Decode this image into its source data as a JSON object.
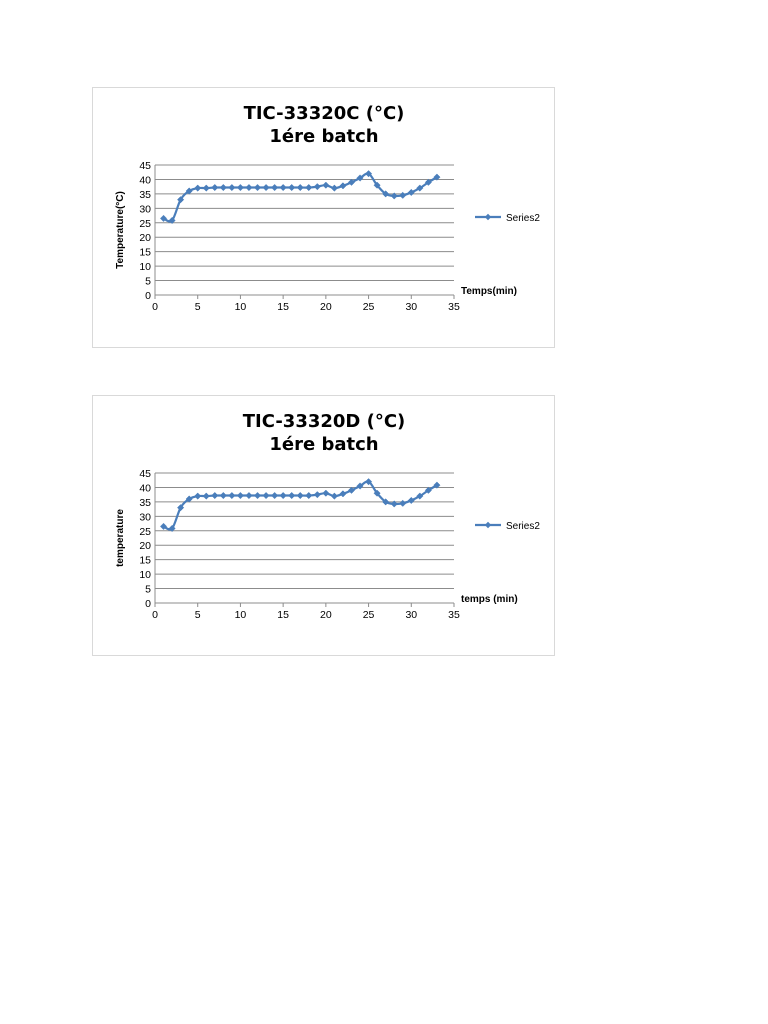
{
  "chart_data": [
    {
      "type": "line",
      "title": "TIC-33320C (°C)",
      "subtitle": "1ére batch",
      "xlabel": "Temps(min)",
      "ylabel": "Temperature(°C)",
      "xlim": [
        0,
        35
      ],
      "ylim": [
        0,
        45
      ],
      "xticks": [
        0,
        5,
        10,
        15,
        20,
        25,
        30,
        35
      ],
      "yticks": [
        0,
        5,
        10,
        15,
        20,
        25,
        30,
        35,
        40,
        45
      ],
      "grid": "horizontal",
      "legend_position": "right",
      "series": [
        {
          "name": "Series2",
          "color": "#4a7ebb",
          "x": [
            1,
            2,
            3,
            4,
            5,
            6,
            7,
            8,
            9,
            10,
            11,
            12,
            13,
            14,
            15,
            16,
            17,
            18,
            19,
            20,
            21,
            22,
            23,
            24,
            25,
            26,
            27,
            28,
            29,
            30,
            31,
            32,
            33
          ],
          "y": [
            26.5,
            25.8,
            33,
            36,
            37,
            37,
            37.2,
            37.2,
            37.2,
            37.2,
            37.2,
            37.2,
            37.2,
            37.2,
            37.2,
            37.2,
            37.2,
            37.2,
            37.5,
            38,
            37,
            37.8,
            39,
            40.5,
            42,
            38,
            35,
            34.3,
            34.5,
            35.5,
            37,
            39,
            40.8
          ]
        }
      ]
    },
    {
      "type": "line",
      "title": "TIC-33320D (°C)",
      "subtitle": "1ére batch",
      "xlabel": "temps (min)",
      "ylabel": "temperature",
      "xlim": [
        0,
        35
      ],
      "ylim": [
        0,
        45
      ],
      "xticks": [
        0,
        5,
        10,
        15,
        20,
        25,
        30,
        35
      ],
      "yticks": [
        0,
        5,
        10,
        15,
        20,
        25,
        30,
        35,
        40,
        45
      ],
      "grid": "horizontal",
      "legend_position": "right",
      "series": [
        {
          "name": "Series2",
          "color": "#4a7ebb",
          "x": [
            1,
            2,
            3,
            4,
            5,
            6,
            7,
            8,
            9,
            10,
            11,
            12,
            13,
            14,
            15,
            16,
            17,
            18,
            19,
            20,
            21,
            22,
            23,
            24,
            25,
            26,
            27,
            28,
            29,
            30,
            31,
            32,
            33
          ],
          "y": [
            26.5,
            25.8,
            33,
            36,
            37,
            37,
            37.2,
            37.2,
            37.2,
            37.2,
            37.2,
            37.2,
            37.2,
            37.2,
            37.2,
            37.2,
            37.2,
            37.2,
            37.5,
            38,
            37,
            37.8,
            39,
            40.5,
            42,
            38,
            35,
            34.3,
            34.5,
            35.5,
            37,
            39,
            40.8
          ]
        }
      ]
    }
  ]
}
